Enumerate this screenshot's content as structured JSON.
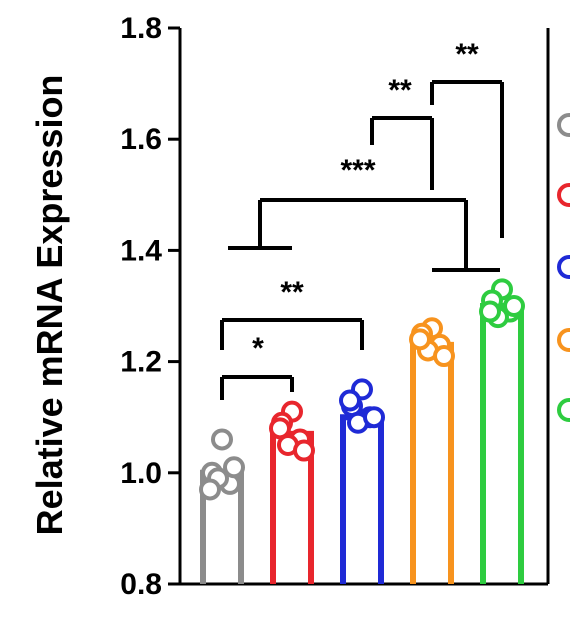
{
  "chart_data": {
    "type": "bar",
    "ylabel": "Relative mRNA Expression",
    "ylim": [
      0.8,
      1.8
    ],
    "yticks": [
      "0.8",
      "1.0",
      "1.2",
      "1.4",
      "1.6",
      "1.8"
    ],
    "grid": false,
    "legend": "right (cropped)",
    "groups": [
      {
        "color": "#8c8c8c",
        "value": 1.0,
        "points": [
          1.06,
          1.0,
          0.98,
          0.99,
          1.01,
          0.97
        ]
      },
      {
        "color": "#e8262d",
        "value": 1.07,
        "points": [
          1.11,
          1.09,
          1.06,
          1.05,
          1.04,
          1.08
        ]
      },
      {
        "color": "#1f2ad6",
        "value": 1.1,
        "points": [
          1.15,
          1.12,
          1.1,
          1.09,
          1.1,
          1.13
        ]
      },
      {
        "color": "#f7931e",
        "value": 1.23,
        "points": [
          1.26,
          1.25,
          1.23,
          1.22,
          1.21,
          1.24
        ]
      },
      {
        "color": "#2ecc40",
        "value": 1.3,
        "points": [
          1.33,
          1.31,
          1.29,
          1.28,
          1.3,
          1.29
        ]
      }
    ],
    "significance": [
      {
        "label": "*"
      },
      {
        "label": "**"
      },
      {
        "label": "***"
      },
      {
        "label": "**"
      },
      {
        "label": "**"
      }
    ]
  }
}
